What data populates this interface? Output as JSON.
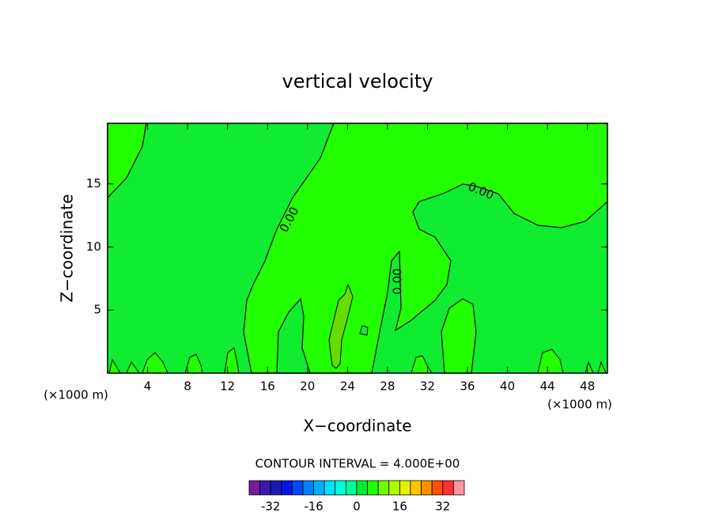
{
  "chart_data": {
    "type": "contour",
    "title": "vertical velocity",
    "xlabel": "X−coordinate",
    "ylabel": "Z−coordinate",
    "x_unit_left": "(×1000 m)",
    "x_unit_right": "(×1000 m)",
    "xlim": [
      0,
      50
    ],
    "ylim": [
      0,
      19.8
    ],
    "xticks": [
      4,
      8,
      12,
      16,
      20,
      24,
      28,
      32,
      36,
      40,
      44,
      48
    ],
    "yticks": [
      5,
      10,
      15
    ],
    "contour_labels": [
      "0.00",
      "0.00",
      "0.00"
    ],
    "contour_interval": "CONTOUR INTERVAL = 4.000E+00",
    "colorbar": {
      "levels": [
        -40,
        -36,
        -32,
        -28,
        -24,
        -20,
        -16,
        -12,
        -8,
        -4,
        0,
        4,
        8,
        12,
        16,
        20,
        24,
        28,
        32,
        36,
        40
      ],
      "colors": [
        "#7a1aa0",
        "#3c1aa8",
        "#1a1ab8",
        "#0018e0",
        "#0048ff",
        "#0080ff",
        "#00b0ff",
        "#00e0ff",
        "#00ffd8",
        "#00ff98",
        "#00f030",
        "#20ff00",
        "#70ff00",
        "#b0ff00",
        "#e8f000",
        "#ffc800",
        "#ff9000",
        "#ff5000",
        "#ff3030",
        "#ff9aa0"
      ],
      "ticks": [
        -32,
        -16,
        0,
        16,
        32
      ]
    }
  }
}
